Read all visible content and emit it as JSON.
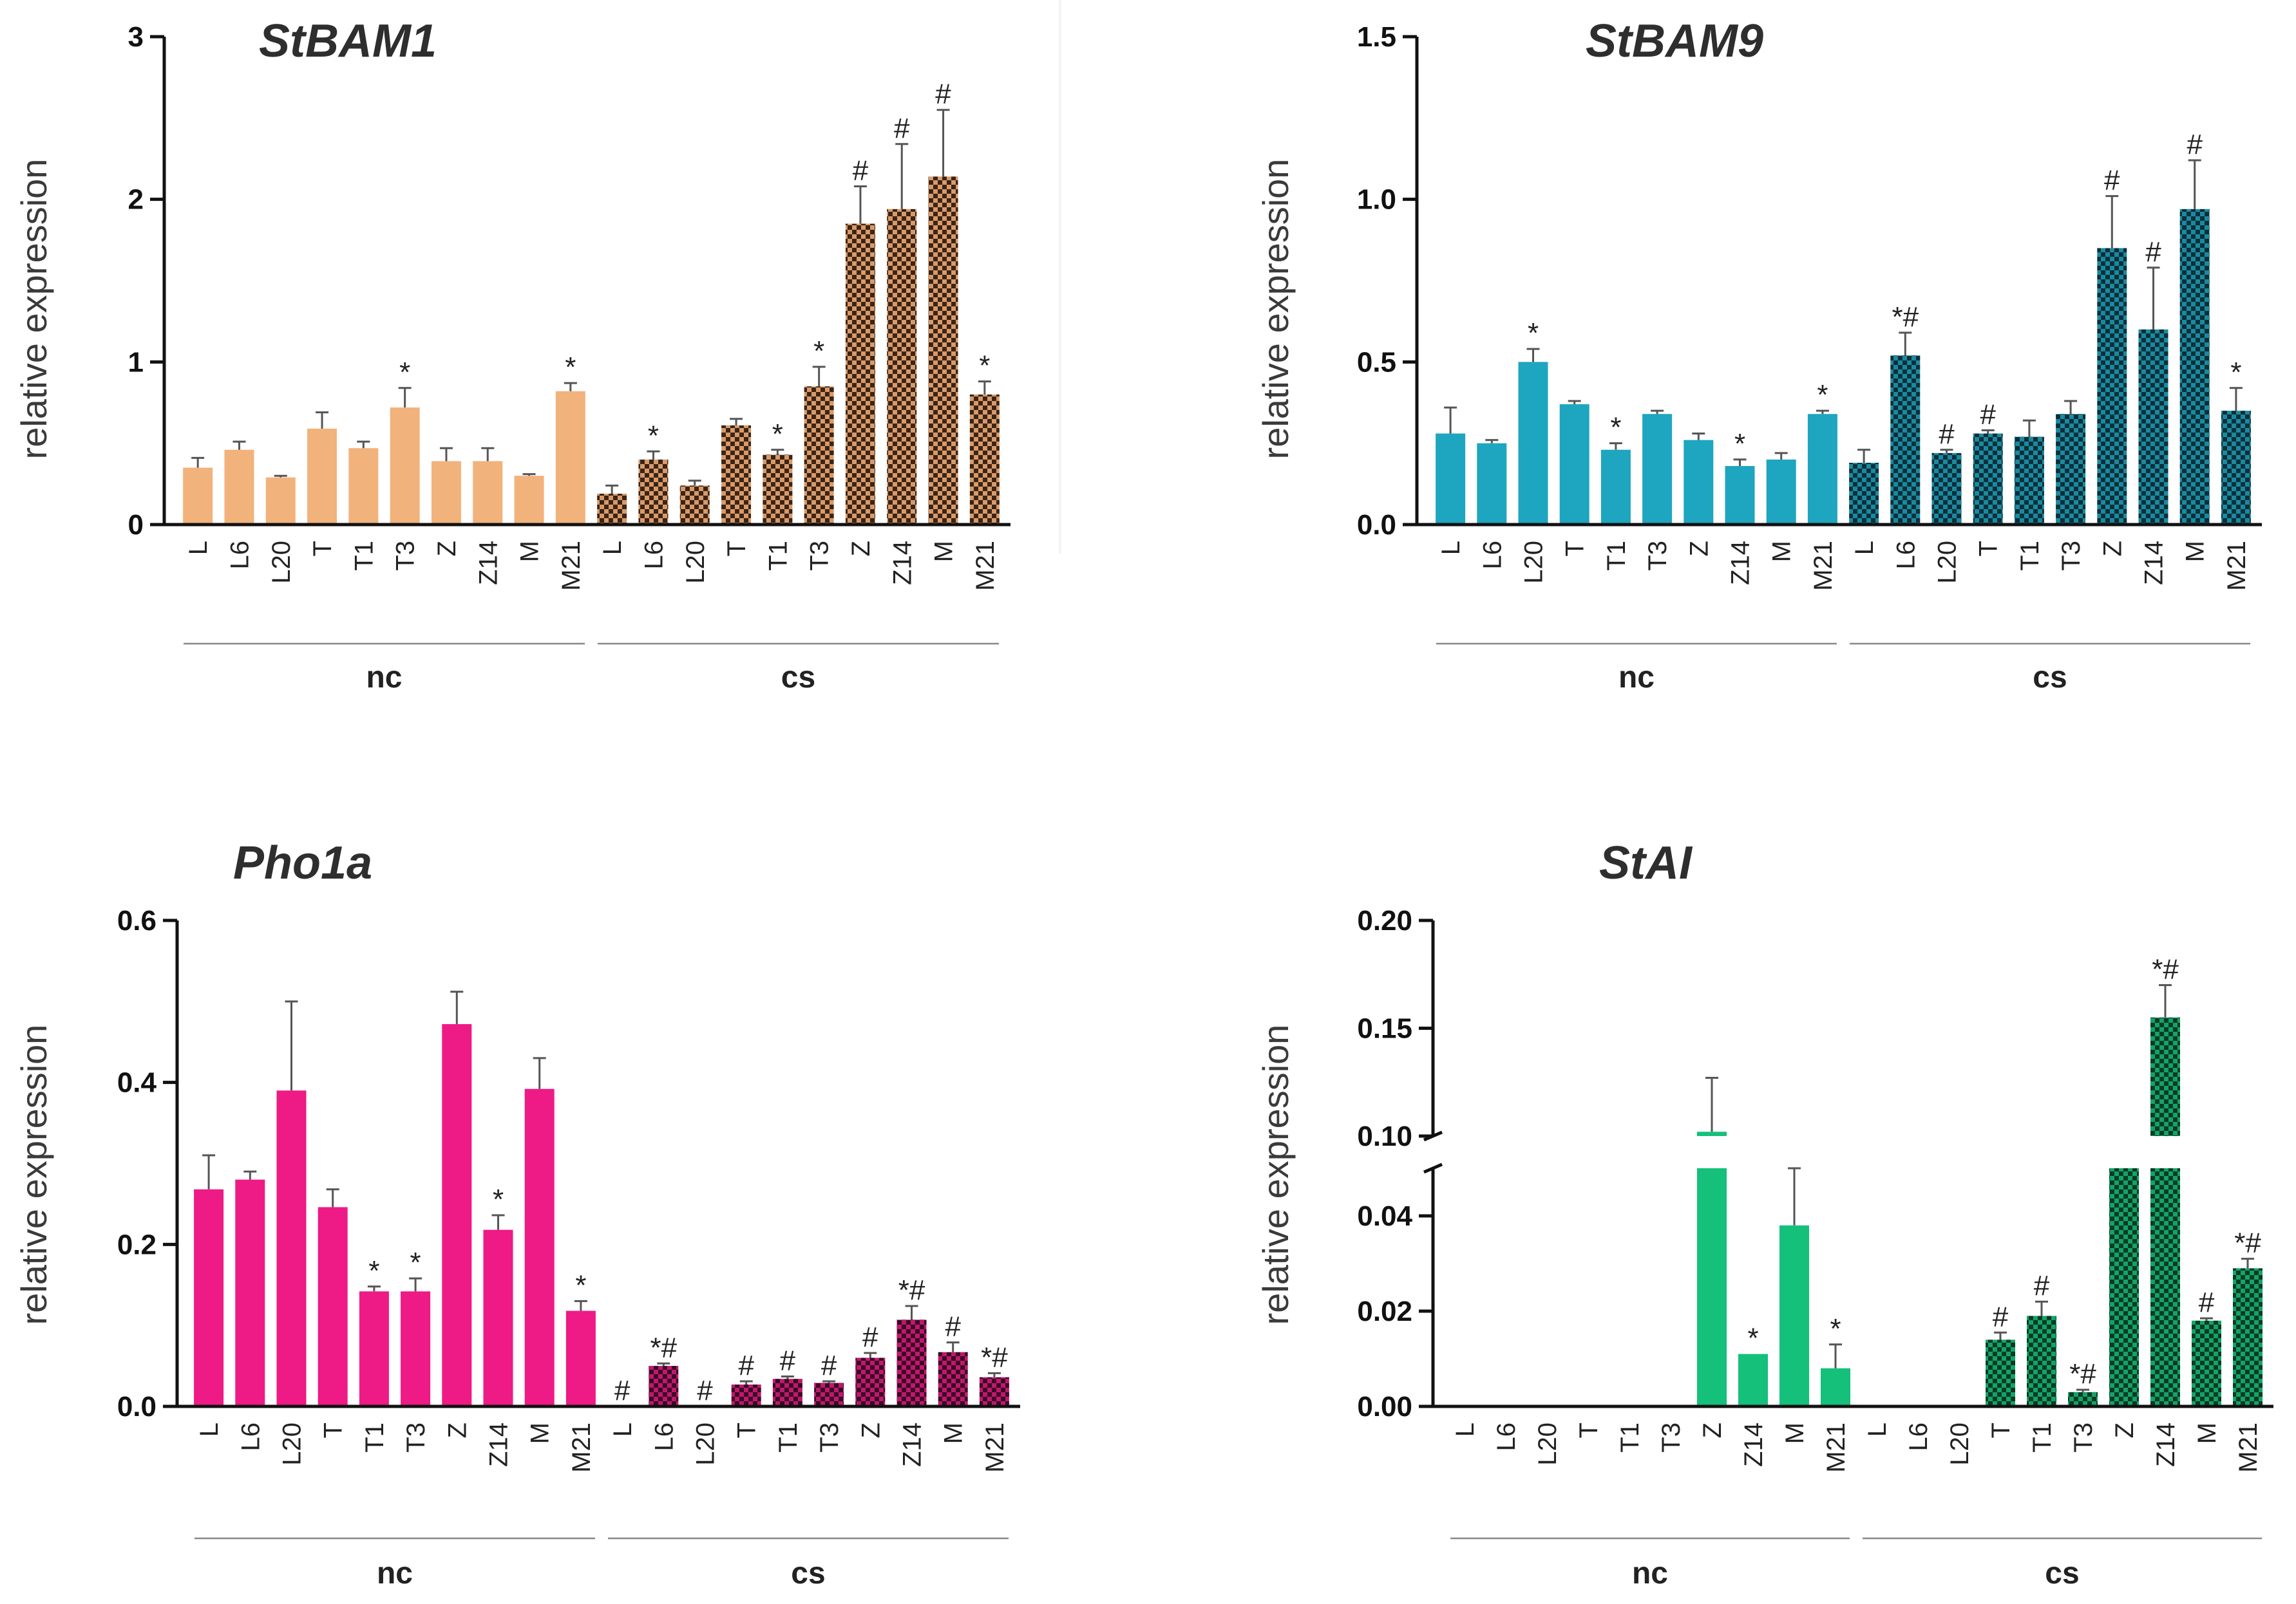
{
  "chart_data": [
    {
      "type": "bar",
      "title": "StBAM1",
      "ylabel": "relative expression",
      "ylim": [
        0,
        3
      ],
      "yticks": [
        "0",
        "1",
        "2",
        "3"
      ],
      "categories": [
        "L",
        "L6",
        "L20",
        "T",
        "T1",
        "T3",
        "Z",
        "Z14",
        "M",
        "M21"
      ],
      "groups": [
        "nc",
        "cs"
      ],
      "colors": {
        "nc": "#f2b27c",
        "cs": "#d89a6a",
        "check": "#3b2414"
      },
      "series": [
        {
          "name": "nc",
          "values": [
            0.35,
            0.46,
            0.29,
            0.59,
            0.47,
            0.72,
            0.39,
            0.39,
            0.3,
            0.82
          ],
          "errors": [
            0.06,
            0.05,
            0.01,
            0.1,
            0.04,
            0.12,
            0.08,
            0.08,
            0.01,
            0.05
          ],
          "marks": [
            "",
            "",
            "",
            "",
            "",
            "*",
            "",
            "",
            "",
            "*"
          ]
        },
        {
          "name": "cs",
          "values": [
            0.19,
            0.4,
            0.24,
            0.61,
            0.43,
            0.85,
            1.85,
            1.94,
            2.14,
            0.8
          ],
          "errors": [
            0.05,
            0.05,
            0.03,
            0.04,
            0.03,
            0.12,
            0.23,
            0.4,
            0.41,
            0.08
          ],
          "marks": [
            "",
            "*",
            "",
            "",
            "*",
            "*",
            "#",
            "#",
            "#",
            "*"
          ]
        }
      ]
    },
    {
      "type": "bar",
      "title": "StBAM9",
      "ylabel": "relative expression",
      "ylim": [
        0,
        1.5
      ],
      "yticks": [
        "0.0",
        "0.5",
        "1.0",
        "1.5"
      ],
      "categories": [
        "L",
        "L6",
        "L20",
        "T",
        "T1",
        "T3",
        "Z",
        "Z14",
        "M",
        "M21"
      ],
      "groups": [
        "nc",
        "cs"
      ],
      "colors": {
        "nc": "#1ea5bf",
        "cs": "#1a8aa0",
        "check": "#0c2f3a"
      },
      "series": [
        {
          "name": "nc",
          "values": [
            0.28,
            0.25,
            0.5,
            0.37,
            0.23,
            0.34,
            0.26,
            0.18,
            0.2,
            0.34
          ],
          "errors": [
            0.08,
            0.01,
            0.04,
            0.01,
            0.02,
            0.01,
            0.02,
            0.02,
            0.02,
            0.01
          ],
          "marks": [
            "",
            "",
            "*",
            "",
            "*",
            "",
            "",
            "*",
            "",
            "*"
          ]
        },
        {
          "name": "cs",
          "values": [
            0.19,
            0.52,
            0.22,
            0.28,
            0.27,
            0.34,
            0.85,
            0.6,
            0.97,
            0.35
          ],
          "errors": [
            0.04,
            0.07,
            0.01,
            0.01,
            0.05,
            0.04,
            0.16,
            0.19,
            0.15,
            0.07
          ],
          "marks": [
            "",
            "*#",
            "#",
            "#",
            "",
            "",
            "#",
            "#",
            "#",
            "*"
          ]
        }
      ]
    },
    {
      "type": "bar",
      "title": "Pho1a",
      "ylabel": "relative expression",
      "ylim": [
        0,
        0.6
      ],
      "yticks": [
        "0.0",
        "0.2",
        "0.4",
        "0.6"
      ],
      "categories": [
        "L",
        "L6",
        "L20",
        "T",
        "T1",
        "T3",
        "Z",
        "Z14",
        "M",
        "M21"
      ],
      "groups": [
        "nc",
        "cs"
      ],
      "colors": {
        "nc": "#ee1a85",
        "cs": "#c01870",
        "check": "#3a0a22"
      },
      "series": [
        {
          "name": "nc",
          "values": [
            0.268,
            0.28,
            0.39,
            0.246,
            0.142,
            0.142,
            0.472,
            0.218,
            0.392,
            0.118
          ],
          "errors": [
            0.042,
            0.01,
            0.11,
            0.022,
            0.006,
            0.016,
            0.04,
            0.018,
            0.038,
            0.012
          ],
          "marks": [
            "",
            "",
            "",
            "",
            "*",
            "*",
            "",
            "*",
            "",
            "*"
          ]
        },
        {
          "name": "cs",
          "values": [
            0.0,
            0.05,
            0.0,
            0.027,
            0.034,
            0.029,
            0.06,
            0.107,
            0.067,
            0.036
          ],
          "errors": [
            0.0,
            0.003,
            0.0,
            0.004,
            0.003,
            0.002,
            0.006,
            0.017,
            0.012,
            0.005
          ],
          "marks": [
            "#",
            "*#",
            "#",
            "#",
            "#",
            "#",
            "#",
            "*#",
            "#",
            "*#"
          ]
        }
      ]
    },
    {
      "type": "bar",
      "title": "StAI",
      "ylabel": "relative expression",
      "ylim_lower": [
        0,
        0.05
      ],
      "ylim_upper": [
        0.1,
        0.2
      ],
      "yticks_lower": [
        "0.00",
        "0.02",
        "0.04"
      ],
      "yticks_upper": [
        "0.10",
        "0.15",
        "0.20"
      ],
      "categories": [
        "L",
        "L6",
        "L20",
        "T",
        "T1",
        "T3",
        "Z",
        "Z14",
        "M",
        "M21"
      ],
      "groups": [
        "nc",
        "cs"
      ],
      "colors": {
        "nc": "#14c07a",
        "cs": "#12a468",
        "check": "#0a3a24"
      },
      "series": [
        {
          "name": "nc",
          "values": [
            0,
            0,
            0,
            0,
            0,
            0,
            0.102,
            0.011,
            0.038,
            0.008
          ],
          "errors": [
            0,
            0,
            0,
            0,
            0,
            0,
            0.025,
            0.0,
            0.02,
            0.005
          ],
          "marks": [
            "",
            "",
            "",
            "",
            "",
            "",
            "",
            "*",
            "",
            "*"
          ]
        },
        {
          "name": "cs",
          "values": [
            0,
            0,
            0,
            0.014,
            0.019,
            0.003,
            0.095,
            0.155,
            0.018,
            0.029
          ],
          "errors": [
            0,
            0,
            0,
            0.0015,
            0.003,
            0.0005,
            0.0,
            0.015,
            0.0005,
            0.002
          ],
          "marks": [
            "",
            "",
            "",
            "#",
            "#",
            "*#",
            "",
            "*#",
            "#",
            "*#"
          ]
        }
      ]
    }
  ]
}
